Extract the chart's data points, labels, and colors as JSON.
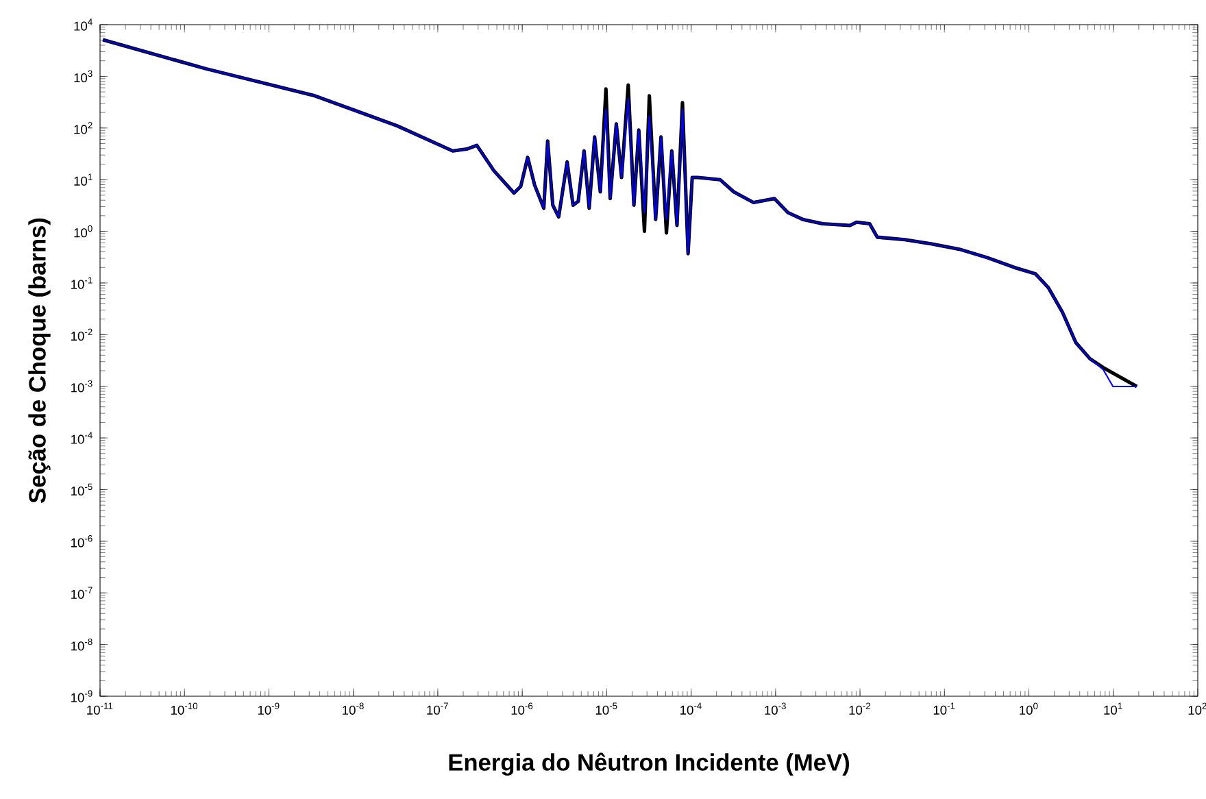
{
  "chart_data": {
    "type": "line",
    "xlabel": "Energia do Nêutron Incidente (MeV)",
    "ylabel": "Seção de Choque (barns)",
    "log": "xy",
    "xlim": [
      1e-11,
      100
    ],
    "ylim": [
      1e-09,
      10000
    ],
    "xticks": [
      {
        "value": 1e-11,
        "label": "10$^{-11}$"
      },
      {
        "value": 1e-10,
        "label": "10$^{-10}$"
      },
      {
        "value": 1e-09,
        "label": "10$^{-9}$"
      },
      {
        "value": 1e-08,
        "label": "10$^{-8}$"
      },
      {
        "value": 1e-07,
        "label": "10$^{-7}$"
      },
      {
        "value": 1e-06,
        "label": "10$^{-6}$"
      },
      {
        "value": 1e-05,
        "label": "10$^{-5}$"
      },
      {
        "value": 0.0001,
        "label": "10$^{-4}$"
      },
      {
        "value": 0.001,
        "label": "10$^{-3}$"
      },
      {
        "value": 0.01,
        "label": "10$^{-2}$"
      },
      {
        "value": 0.1,
        "label": "10$^{-1}$"
      },
      {
        "value": 1,
        "label": "10$^{0}$"
      },
      {
        "value": 10,
        "label": "10$^{1}$"
      },
      {
        "value": 100,
        "label": "10$^{2}$"
      }
    ],
    "yticks": [
      {
        "value": 1e-09,
        "label": "10$^{-9}$"
      },
      {
        "value": 1e-08,
        "label": "10$^{-8}$"
      },
      {
        "value": 1e-07,
        "label": "10$^{-7}$"
      },
      {
        "value": 1e-06,
        "label": "10$^{-6}$"
      },
      {
        "value": 1e-05,
        "label": "10$^{-5}$"
      },
      {
        "value": 0.0001,
        "label": "10$^{-4}$"
      },
      {
        "value": 0.001,
        "label": "10$^{-3}$"
      },
      {
        "value": 0.01,
        "label": "10$^{-2}$"
      },
      {
        "value": 0.1,
        "label": "10$^{-1}$"
      },
      {
        "value": 1,
        "label": "10$^{0}$"
      },
      {
        "value": 10,
        "label": "10$^{1}$"
      },
      {
        "value": 100,
        "label": "10$^{2}$"
      },
      {
        "value": 1000,
        "label": "10$^{3}$"
      },
      {
        "value": 10000,
        "label": "10$^{4}$"
      }
    ],
    "series": [
      {
        "color": "#0000ff",
        "x": [
          1.08e-11,
          1.8e-10,
          3.5e-09,
          3.3e-08,
          1.5e-07,
          2.2e-07,
          2.9e-07,
          4.6e-07,
          8e-07,
          9.6e-07,
          1.16e-06,
          1.4e-06,
          1.8e-06,
          2e-06,
          2.3e-06,
          2.7e-06,
          3.4e-06,
          4e-06,
          4.6e-06,
          5.4e-06,
          6.2e-06,
          7.2e-06,
          8.4e-06,
          9.8e-06,
          1.1e-05,
          1.3e-05,
          1.5e-05,
          1.8e-05,
          2.1e-05,
          2.4e-05,
          2.8e-05,
          3.2e-05,
          3.8e-05,
          4.4e-05,
          5.1e-05,
          5.9e-05,
          6.8e-05,
          7.9e-05,
          9.2e-05,
          0.000103,
          0.00012,
          0.00022,
          0.00032,
          0.00055,
          0.00097,
          0.0014,
          0.0021,
          0.0036,
          0.0076,
          0.0091,
          0.013,
          0.016,
          0.034,
          0.071,
          0.15,
          0.32,
          0.67,
          1.2,
          1.7,
          2.5,
          3.6,
          5.3,
          7.6,
          9.9,
          19
        ],
        "values": [
          5100,
          1400,
          420,
          110,
          36,
          39,
          46,
          15,
          5.5,
          7.4,
          27,
          7.9,
          2.8,
          56,
          3.2,
          1.9,
          22,
          3.2,
          3.8,
          36,
          2.8,
          67,
          5.8,
          230,
          4.3,
          120,
          11,
          370,
          3.2,
          91,
          2.3,
          170,
          1.7,
          67,
          1.7,
          36,
          1.3,
          230,
          0.37,
          11,
          11,
          10,
          5.8,
          3.6,
          4.3,
          2.3,
          1.7,
          1.4,
          1.3,
          1.5,
          1.4,
          0.77,
          0.69,
          0.57,
          0.45,
          0.31,
          0.2,
          0.15,
          0.081,
          0.027,
          0.007,
          0.0034,
          0.0021,
          0.00099,
          0.00099
        ]
      },
      {
        "color": "#000000",
        "x": [
          1.08e-11,
          1.8e-10,
          3.5e-09,
          3.3e-08,
          1.5e-07,
          2.2e-07,
          2.9e-07,
          4.6e-07,
          8e-07,
          9.6e-07,
          1.16e-06,
          1.4e-06,
          1.8e-06,
          2e-06,
          2.3e-06,
          2.7e-06,
          3.4e-06,
          4e-06,
          4.6e-06,
          5.4e-06,
          6.2e-06,
          7.2e-06,
          8.4e-06,
          9.8e-06,
          1.1e-05,
          1.3e-05,
          1.5e-05,
          1.8e-05,
          2.1e-05,
          2.4e-05,
          2.8e-05,
          3.2e-05,
          3.8e-05,
          4.4e-05,
          5.1e-05,
          5.9e-05,
          6.8e-05,
          7.9e-05,
          9.2e-05,
          0.000103,
          0.00012,
          0.00022,
          0.00032,
          0.00055,
          0.00097,
          0.0014,
          0.0021,
          0.0036,
          0.0076,
          0.0091,
          0.013,
          0.016,
          0.034,
          0.071,
          0.15,
          0.32,
          0.67,
          1.2,
          1.7,
          2.5,
          3.6,
          5.3,
          7.6,
          9.9,
          19
        ],
        "values": [
          5100,
          1400,
          420,
          110,
          36,
          39,
          46,
          15,
          5.5,
          7.4,
          27,
          7.9,
          2.8,
          56,
          3.2,
          1.9,
          22,
          3.2,
          3.8,
          36,
          2.8,
          67,
          5.8,
          570,
          4.3,
          120,
          11,
          680,
          3.2,
          91,
          1.0,
          420,
          1.7,
          67,
          0.93,
          36,
          1.3,
          310,
          0.37,
          11,
          11,
          10,
          5.8,
          3.6,
          4.3,
          2.3,
          1.7,
          1.4,
          1.3,
          1.5,
          1.4,
          0.77,
          0.69,
          0.57,
          0.45,
          0.31,
          0.2,
          0.15,
          0.081,
          0.027,
          0.007,
          0.0034,
          0.0023,
          0.0018,
          0.00099
        ]
      }
    ]
  }
}
